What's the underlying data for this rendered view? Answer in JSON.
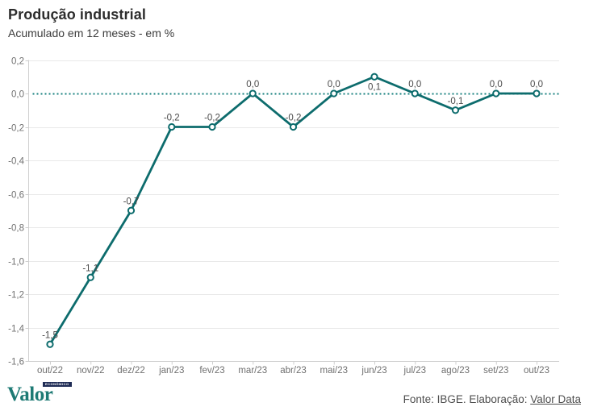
{
  "header": {
    "title": "Produção industrial",
    "subtitle": "Acumulado em 12 meses - em %"
  },
  "chart_data": {
    "type": "line",
    "title": "Produção industrial",
    "subtitle": "Acumulado em 12 meses - em %",
    "categories": [
      "out/22",
      "nov/22",
      "dez/22",
      "jan/23",
      "fev/23",
      "mar/23",
      "abr/23",
      "mai/23",
      "jun/23",
      "jul/23",
      "ago/23",
      "set/23",
      "out/23"
    ],
    "values": [
      -1.5,
      -1.1,
      -0.7,
      -0.2,
      -0.2,
      0,
      -0.2,
      0,
      0.1,
      0,
      -0.1,
      0,
      0
    ],
    "point_labels": [
      "-1,5",
      "-1,1",
      "-0,7",
      "-0,2",
      "-0,2",
      "0,0",
      "-0,2",
      "0,0",
      "0,1",
      "0,0",
      "-0,1",
      "0,0",
      "0,0"
    ],
    "label_positions": [
      "above",
      "above",
      "above",
      "above",
      "above",
      "above",
      "above",
      "above",
      "below",
      "above",
      "above",
      "above",
      "above"
    ],
    "ylim": [
      -1.6,
      0.2
    ],
    "yticks": [
      0.2,
      0,
      -0.2,
      -0.4,
      -0.6,
      -0.8,
      -1.0,
      -1.2,
      -1.4,
      -1.6
    ],
    "ytick_labels": [
      "0,2",
      "0,0",
      "-0,2",
      "-0,4",
      "-0,6",
      "-0,8",
      "-1,0",
      "-1,2",
      "-1,4",
      "-1,6"
    ],
    "grid": true,
    "legend": "none",
    "zero_line": {
      "value": 0,
      "style": "dotted"
    },
    "colors": {
      "line": "#0d6c6d",
      "marker_fill": "#ffffff",
      "zero_dotted": "#17807f",
      "gridline": "#e9e9e9",
      "axis": "#cfcfcf"
    }
  },
  "footer": {
    "logo_text": "Valor",
    "logo_badge": "ECONÔMICO",
    "source_prefix": "Fonte: IBGE. Elaboração: ",
    "source_link": "Valor Data"
  }
}
